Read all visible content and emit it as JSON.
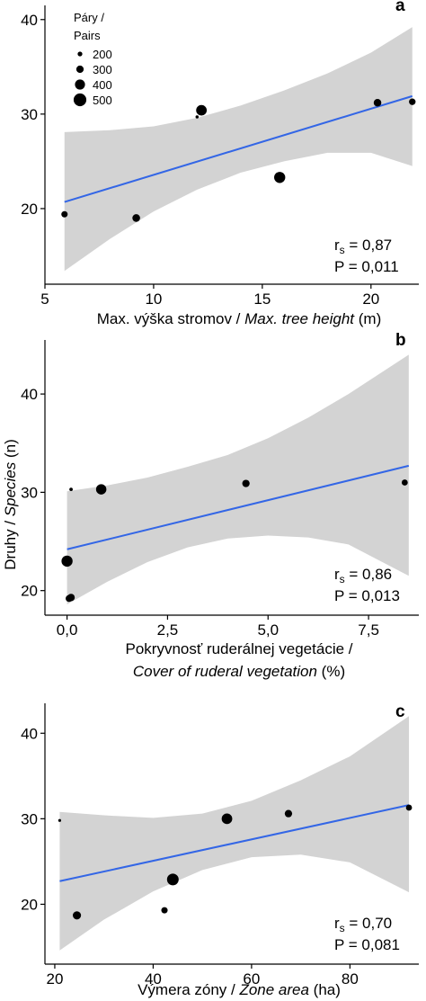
{
  "legend": {
    "title_line1": "Páry /",
    "title_line2": "Pairs",
    "entries": [
      {
        "label": "200",
        "value": 200
      },
      {
        "label": "300",
        "value": 300
      },
      {
        "label": "400",
        "value": 400
      },
      {
        "label": "500",
        "value": 500
      }
    ]
  },
  "chart_data": [
    {
      "type": "scatter",
      "panel": "a",
      "xlim": [
        5,
        22.2
      ],
      "ylim": [
        12,
        41.5
      ],
      "xticks": [
        5,
        10,
        15,
        20
      ],
      "xtick_labels": [
        "5",
        "10",
        "15",
        "20"
      ],
      "yticks": [
        20,
        30,
        40
      ],
      "ytick_labels": [
        "20",
        "30",
        "40"
      ],
      "xlabel": {
        "plain": "Max. výška stromov / ",
        "italic": "Max. tree height",
        "unit": " (m)"
      },
      "xlabel_line2": null,
      "ylabel": null,
      "points": [
        {
          "x": 5.9,
          "y": 19.4,
          "pairs": 260
        },
        {
          "x": 9.2,
          "y": 19.0,
          "pairs": 310
        },
        {
          "x": 12.0,
          "y": 29.7,
          "pairs": 140
        },
        {
          "x": 12.2,
          "y": 30.4,
          "pairs": 420
        },
        {
          "x": 15.8,
          "y": 23.3,
          "pairs": 440
        },
        {
          "x": 20.3,
          "y": 31.2,
          "pairs": 310
        },
        {
          "x": 21.9,
          "y": 31.3,
          "pairs": 270
        }
      ],
      "fit": {
        "x": [
          5.9,
          21.9
        ],
        "y": [
          20.7,
          31.9
        ]
      },
      "ci_upper": [
        {
          "x": 5.9,
          "y": 28.1
        },
        {
          "x": 8.0,
          "y": 28.3
        },
        {
          "x": 10.0,
          "y": 28.7
        },
        {
          "x": 12.0,
          "y": 29.6
        },
        {
          "x": 14.0,
          "y": 30.9
        },
        {
          "x": 16.0,
          "y": 32.5
        },
        {
          "x": 18.0,
          "y": 34.3
        },
        {
          "x": 20.0,
          "y": 36.5
        },
        {
          "x": 21.9,
          "y": 39.2
        }
      ],
      "ci_lower": [
        {
          "x": 5.9,
          "y": 13.4
        },
        {
          "x": 8.0,
          "y": 16.8
        },
        {
          "x": 10.0,
          "y": 19.7
        },
        {
          "x": 12.0,
          "y": 22.0
        },
        {
          "x": 14.0,
          "y": 23.8
        },
        {
          "x": 16.0,
          "y": 25.0
        },
        {
          "x": 18.0,
          "y": 25.9
        },
        {
          "x": 20.0,
          "y": 25.9
        },
        {
          "x": 21.9,
          "y": 24.5
        }
      ],
      "stats": {
        "rs_label": "r",
        "rs_sub": "s",
        "rs_value": " = 0,87",
        "p": "P = 0,011"
      }
    },
    {
      "type": "scatter",
      "panel": "b",
      "xlim": [
        -0.55,
        8.75
      ],
      "ylim": [
        17.5,
        45.5
      ],
      "xticks": [
        0,
        2.5,
        5,
        7.5
      ],
      "xtick_labels": [
        "0,0",
        "2,5",
        "5,0",
        "7,5"
      ],
      "yticks": [
        20,
        30,
        40
      ],
      "ytick_labels": [
        "20",
        "30",
        "40"
      ],
      "xlabel": {
        "plain": "Pokryvnosť ruderálnej vegetácie /",
        "italic": "",
        "unit": ""
      },
      "xlabel_line2": {
        "italic": "Cover of ruderal vegetation",
        "unit": " (%)"
      },
      "ylabel": {
        "plain": "Druhy / ",
        "italic": "Species",
        "unit": " (n)"
      },
      "points": [
        {
          "x": 0.0,
          "y": 23.0,
          "pairs": 440
        },
        {
          "x": 0.05,
          "y": 19.2,
          "pairs": 280
        },
        {
          "x": 0.1,
          "y": 19.3,
          "pairs": 300
        },
        {
          "x": 0.1,
          "y": 30.3,
          "pairs": 150
        },
        {
          "x": 0.85,
          "y": 30.3,
          "pairs": 410
        },
        {
          "x": 4.45,
          "y": 30.9,
          "pairs": 300
        },
        {
          "x": 8.4,
          "y": 31.0,
          "pairs": 250
        }
      ],
      "fit": {
        "x": [
          0.0,
          8.5
        ],
        "y": [
          24.2,
          32.7
        ]
      },
      "ci_upper": [
        {
          "x": 0.0,
          "y": 30.1
        },
        {
          "x": 1.0,
          "y": 30.7
        },
        {
          "x": 2.0,
          "y": 31.5
        },
        {
          "x": 3.0,
          "y": 32.6
        },
        {
          "x": 4.0,
          "y": 33.8
        },
        {
          "x": 5.0,
          "y": 35.5
        },
        {
          "x": 6.0,
          "y": 37.6
        },
        {
          "x": 7.0,
          "y": 40.0
        },
        {
          "x": 8.5,
          "y": 44.0
        }
      ],
      "ci_lower": [
        {
          "x": 0.0,
          "y": 18.6
        },
        {
          "x": 1.0,
          "y": 20.9
        },
        {
          "x": 2.0,
          "y": 22.9
        },
        {
          "x": 3.0,
          "y": 24.4
        },
        {
          "x": 4.0,
          "y": 25.3
        },
        {
          "x": 5.0,
          "y": 25.6
        },
        {
          "x": 6.0,
          "y": 25.4
        },
        {
          "x": 7.0,
          "y": 24.7
        },
        {
          "x": 8.5,
          "y": 21.5
        }
      ],
      "stats": {
        "rs_label": "r",
        "rs_sub": "s",
        "rs_value": " = 0,86",
        "p": "P = 0,013"
      }
    },
    {
      "type": "scatter",
      "panel": "c",
      "xlim": [
        18,
        94
      ],
      "ylim": [
        13,
        43.5
      ],
      "xticks": [
        20,
        40,
        60,
        80
      ],
      "xtick_labels": [
        "20",
        "40",
        "60",
        "80"
      ],
      "yticks": [
        20,
        30,
        40
      ],
      "ytick_labels": [
        "20",
        "30",
        "40"
      ],
      "xlabel": {
        "plain": "Výmera zóny / ",
        "italic": "Zone area",
        "unit": " (ha)"
      },
      "xlabel_line2": null,
      "ylabel": null,
      "points": [
        {
          "x": 21.0,
          "y": 29.8,
          "pairs": 130
        },
        {
          "x": 24.5,
          "y": 18.7,
          "pairs": 330
        },
        {
          "x": 42.3,
          "y": 19.3,
          "pairs": 260
        },
        {
          "x": 44.0,
          "y": 22.9,
          "pairs": 460
        },
        {
          "x": 55.0,
          "y": 30.0,
          "pairs": 420
        },
        {
          "x": 67.5,
          "y": 30.6,
          "pairs": 300
        },
        {
          "x": 92.0,
          "y": 31.3,
          "pairs": 250
        }
      ],
      "fit": {
        "x": [
          21.0,
          92.0
        ],
        "y": [
          22.7,
          31.6
        ]
      },
      "ci_upper": [
        {
          "x": 21.0,
          "y": 30.8
        },
        {
          "x": 30.0,
          "y": 30.4
        },
        {
          "x": 40.0,
          "y": 30.1
        },
        {
          "x": 50.0,
          "y": 30.6
        },
        {
          "x": 60.0,
          "y": 32.1
        },
        {
          "x": 70.0,
          "y": 34.5
        },
        {
          "x": 80.0,
          "y": 37.3
        },
        {
          "x": 92.0,
          "y": 42.0
        }
      ],
      "ci_lower": [
        {
          "x": 21.0,
          "y": 14.6
        },
        {
          "x": 30.0,
          "y": 18.2
        },
        {
          "x": 40.0,
          "y": 21.5
        },
        {
          "x": 50.0,
          "y": 24.0
        },
        {
          "x": 60.0,
          "y": 25.5
        },
        {
          "x": 70.0,
          "y": 25.8
        },
        {
          "x": 80.0,
          "y": 24.9
        },
        {
          "x": 92.0,
          "y": 21.4
        }
      ],
      "stats": {
        "rs_label": "r",
        "rs_sub": "s",
        "rs_value": " = 0,70",
        "p": "P = 0,081"
      }
    }
  ]
}
